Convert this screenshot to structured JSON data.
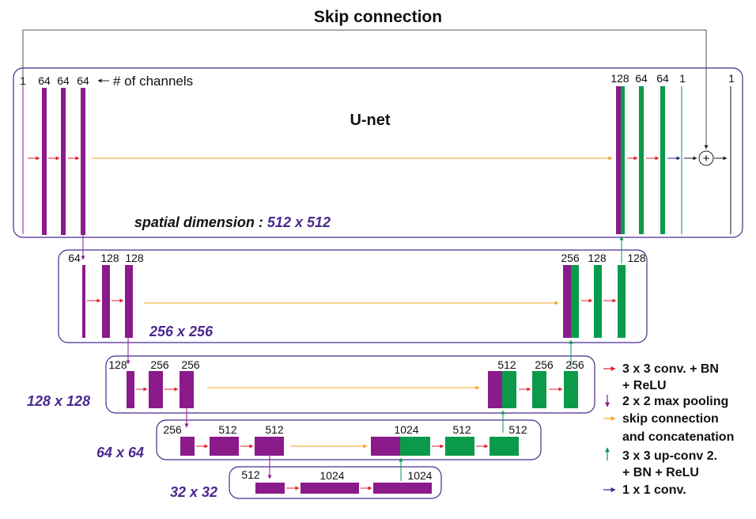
{
  "title": "Skip connection",
  "network_name": "U-net",
  "channels_hint": "# of channels",
  "colors": {
    "encoder": "#8b1a8b",
    "decoder": "#0a9a4a",
    "conv_arrow": "#e0222b",
    "pool_arrow": "#8b1a8b",
    "skip_arrow": "#f5a623",
    "upconv_arrow": "#0a9a4a",
    "conv1x1_arrow": "#2b2b8f",
    "dimension_text": "#4b2a91"
  },
  "levels": [
    {
      "dimension_prefix": "spatial dimension : ",
      "dimension": "512 x 512",
      "encoder_channels": [
        "1",
        "64",
        "64",
        "64"
      ],
      "decoder_channels": [
        "128",
        "64",
        "64",
        "1",
        "1"
      ]
    },
    {
      "dimension": "256 x 256",
      "encoder_channels": [
        "64",
        "128",
        "128"
      ],
      "decoder_channels": [
        "256",
        "128",
        "128"
      ]
    },
    {
      "dimension": "128 x 128",
      "encoder_channels": [
        "128",
        "256",
        "256"
      ],
      "decoder_channels": [
        "512",
        "256",
        "256"
      ]
    },
    {
      "dimension": "64 x 64",
      "encoder_channels": [
        "256",
        "512",
        "512"
      ],
      "decoder_channels": [
        "1024",
        "512",
        "512"
      ]
    },
    {
      "dimension": "32 x 32",
      "encoder_channels": [
        "512",
        "1024",
        "1024"
      ]
    }
  ],
  "legend": [
    {
      "arrow": "conv_arrow",
      "lines": [
        "3 x 3 conv. + BN",
        "+ ReLU"
      ]
    },
    {
      "arrow": "pool_arrow",
      "lines": [
        "2 x 2 max pooling"
      ]
    },
    {
      "arrow": "skip_arrow",
      "lines": [
        "skip connection",
        "and concatenation"
      ]
    },
    {
      "arrow": "upconv_arrow",
      "lines": [
        "3 x 3 up-conv 2.",
        "+ BN + ReLU"
      ]
    },
    {
      "arrow": "conv1x1_arrow",
      "lines": [
        "1 x 1 conv."
      ]
    }
  ],
  "plus_symbol": "+"
}
